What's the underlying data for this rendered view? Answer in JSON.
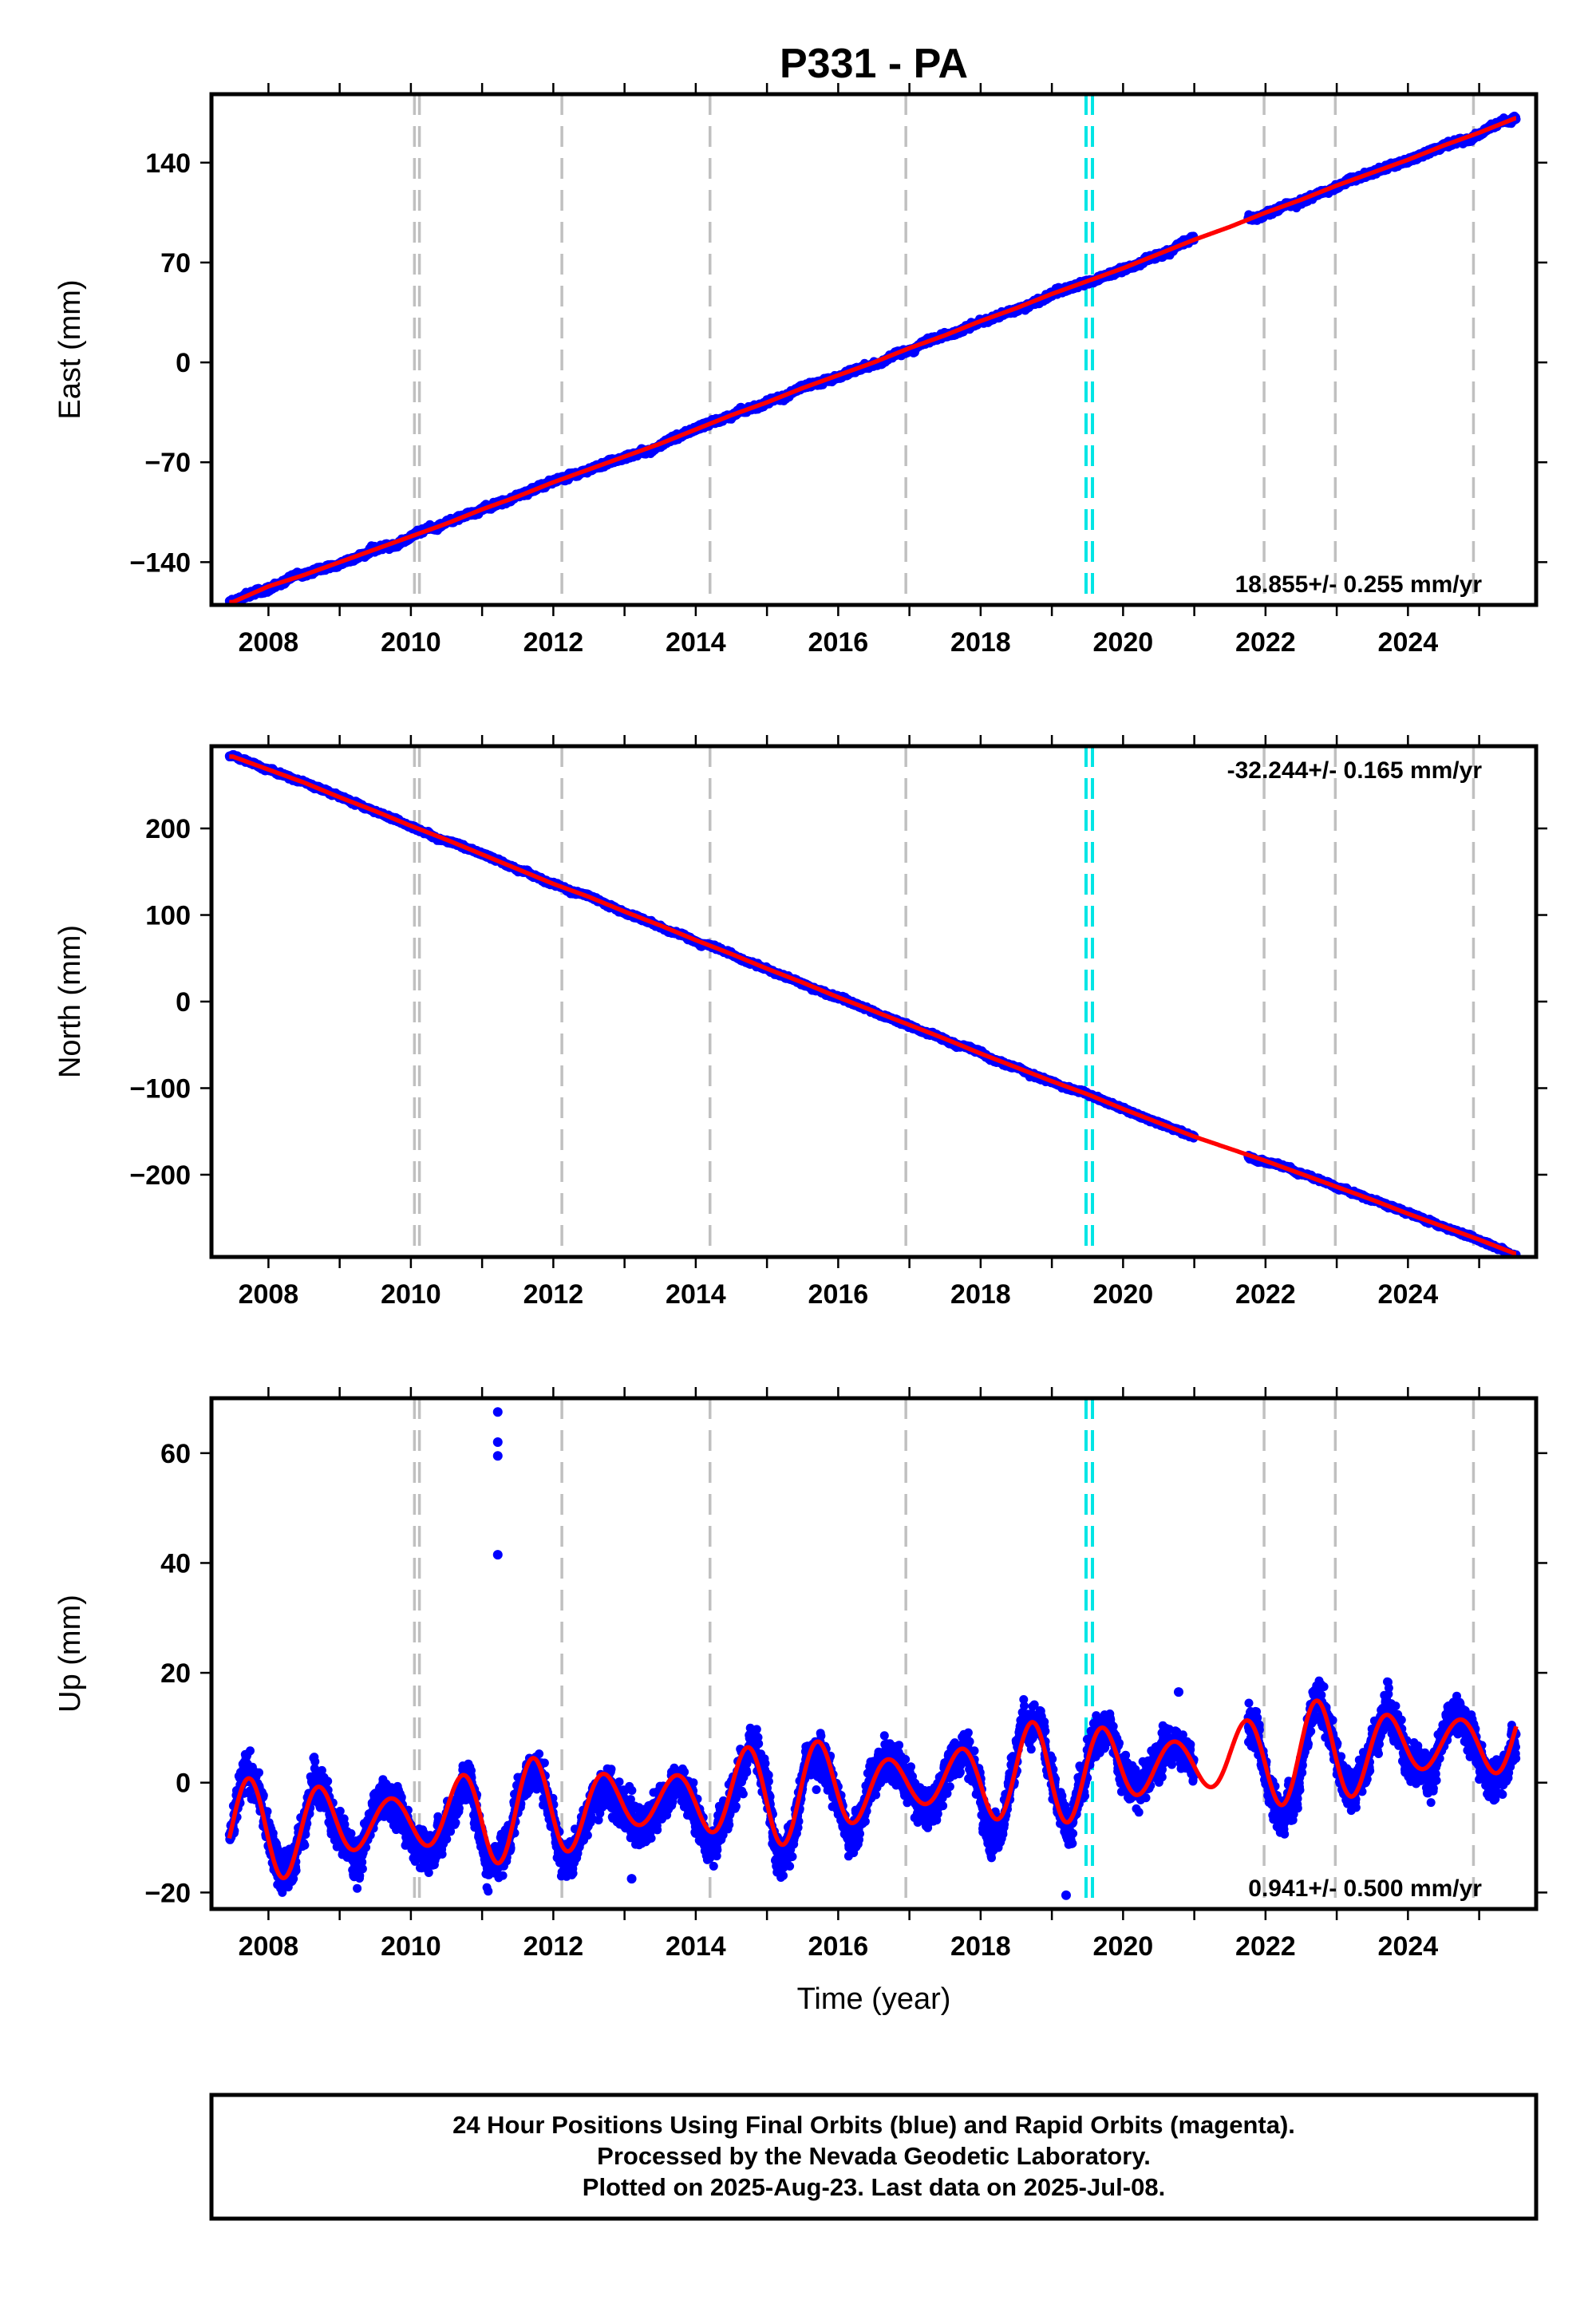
{
  "chart_data": [
    {
      "type": "scatter",
      "panel": "east",
      "title": "P331 - PA",
      "ylabel": "East (mm)",
      "xlim": [
        2007.2,
        2025.8
      ],
      "ylim": [
        -170,
        188
      ],
      "xticks": [
        2008,
        2010,
        2012,
        2014,
        2016,
        2018,
        2020,
        2022,
        2024
      ],
      "yticks": [
        -140,
        -70,
        0,
        70,
        140
      ],
      "grid": false,
      "rate_label": "18.855+/- 0.255 mm/yr",
      "rate_position": "bottom-right",
      "model_series": {
        "name": "model",
        "color": "#ff0000",
        "x": [
          2007.5,
          2008.0,
          2008.5,
          2009.0,
          2009.5,
          2010.0,
          2010.5,
          2011.0,
          2011.5,
          2012.0,
          2012.5,
          2013.0,
          2013.5,
          2014.0,
          2014.5,
          2015.0,
          2015.5,
          2016.0,
          2016.5,
          2017.0,
          2017.5,
          2018.0,
          2018.5,
          2019.0,
          2019.5,
          2020.0,
          2020.5,
          2021.0,
          2021.5,
          2022.0,
          2022.5,
          2023.0,
          2023.5,
          2024.0,
          2024.5,
          2025.0,
          2025.5
        ],
        "y": [
          -168,
          -157,
          -149,
          -140,
          -131,
          -122,
          -113,
          -103,
          -94,
          -84,
          -75,
          -66,
          -57,
          -47,
          -37,
          -28,
          -18,
          -9,
          0,
          10,
          19,
          29,
          38,
          48,
          57,
          66,
          76,
          86,
          95,
          105,
          114,
          124,
          133,
          142,
          152,
          161,
          171
        ]
      },
      "observed_series": {
        "name": "observed",
        "color": "#0000ff",
        "note_start_year": 2007.45,
        "end_year": 2025.52,
        "noise_mm": 2.2
      },
      "equipment_changes": [
        2010.05,
        2010.12,
        2012.12,
        2014.2,
        2016.95,
        2021.98,
        2022.98,
        2024.92
      ],
      "other_events": [
        2019.48,
        2019.57
      ],
      "data_gap": [
        2021.0,
        2021.75
      ]
    },
    {
      "type": "scatter",
      "panel": "north",
      "ylabel": "North (mm)",
      "xlim": [
        2007.2,
        2025.8
      ],
      "ylim": [
        -295,
        295
      ],
      "xticks": [
        2008,
        2010,
        2012,
        2014,
        2016,
        2018,
        2020,
        2022,
        2024
      ],
      "yticks": [
        -200,
        -100,
        0,
        100,
        200
      ],
      "grid": false,
      "rate_label": "-32.244+/- 0.165 mm/yr",
      "rate_position": "top-right",
      "model_series": {
        "name": "model",
        "color": "#ff0000",
        "x": [
          2007.5,
          2008.0,
          2008.5,
          2009.0,
          2009.5,
          2010.0,
          2010.5,
          2011.0,
          2011.5,
          2012.0,
          2012.5,
          2013.0,
          2013.5,
          2014.0,
          2014.5,
          2015.0,
          2015.5,
          2016.0,
          2016.5,
          2017.0,
          2017.5,
          2018.0,
          2018.5,
          2019.0,
          2019.5,
          2020.0,
          2020.5,
          2021.0,
          2021.5,
          2022.0,
          2022.5,
          2023.0,
          2023.5,
          2024.0,
          2024.5,
          2025.0,
          2025.5
        ],
        "y": [
          283,
          268,
          253,
          236,
          220,
          203,
          187,
          170,
          153,
          136,
          121,
          104,
          88,
          71,
          55,
          38,
          22,
          5,
          -11,
          -27,
          -43,
          -60,
          -76,
          -92,
          -107,
          -124,
          -140,
          -156,
          -170,
          -184,
          -199,
          -214,
          -229,
          -245,
          -260,
          -275,
          -291
        ]
      },
      "observed_series": {
        "name": "observed",
        "color": "#0000ff",
        "note_start_year": 2007.45,
        "end_year": 2025.52,
        "noise_mm": 2.5
      },
      "equipment_changes": [
        2010.05,
        2010.12,
        2012.12,
        2014.2,
        2016.95,
        2021.98,
        2022.98,
        2024.92
      ],
      "other_events": [
        2019.48,
        2019.57
      ],
      "data_gap": [
        2021.0,
        2021.75
      ]
    },
    {
      "type": "scatter",
      "panel": "up",
      "ylabel": "Up (mm)",
      "xlabel": "Time (year)",
      "xlim": [
        2007.2,
        2025.8
      ],
      "ylim": [
        -23,
        70
      ],
      "xticks": [
        2008,
        2010,
        2012,
        2014,
        2016,
        2018,
        2020,
        2022,
        2024
      ],
      "yticks": [
        -20,
        0,
        20,
        40,
        60
      ],
      "grid": false,
      "rate_label": "0.941+/- 0.500 mm/yr",
      "rate_position": "bottom-right",
      "model_series": {
        "name": "model",
        "color": "#ff0000",
        "rate_mm_yr": 0.941,
        "annual_amplitude_mm": 8,
        "annual_peak_phase": 0.72,
        "ref_year": 2016.5,
        "offset_mm": -0.5
      },
      "observed_series": {
        "name": "observed",
        "color": "#0000ff",
        "note_start_year": 2007.45,
        "end_year": 2025.52,
        "noise_mm": 4.2
      },
      "outliers": [
        {
          "x": 2011.22,
          "y": 67.5
        },
        {
          "x": 2011.22,
          "y": 62
        },
        {
          "x": 2011.22,
          "y": 59.5
        },
        {
          "x": 2011.22,
          "y": 41.5
        },
        {
          "x": 2020.78,
          "y": 16.5
        },
        {
          "x": 2013.1,
          "y": -17.5
        },
        {
          "x": 2019.2,
          "y": -20.5
        }
      ],
      "equipment_changes": [
        2010.05,
        2010.12,
        2012.12,
        2014.2,
        2016.95,
        2021.98,
        2022.98,
        2024.92
      ],
      "other_events": [
        2019.48,
        2019.57
      ],
      "data_gap": [
        2021.0,
        2021.75
      ]
    }
  ],
  "footer": {
    "line1": "24 Hour Positions Using Final Orbits (blue) and Rapid Orbits (magenta).",
    "line2": "Processed by the Nevada Geodetic Laboratory.",
    "line3": "Plotted on 2025-Aug-23. Last data on 2025-Jul-08."
  },
  "colors": {
    "observed": "#0000ff",
    "model": "#ff0000",
    "equipment_change": "#c0c0c0",
    "other_event": "#00e5e5"
  }
}
